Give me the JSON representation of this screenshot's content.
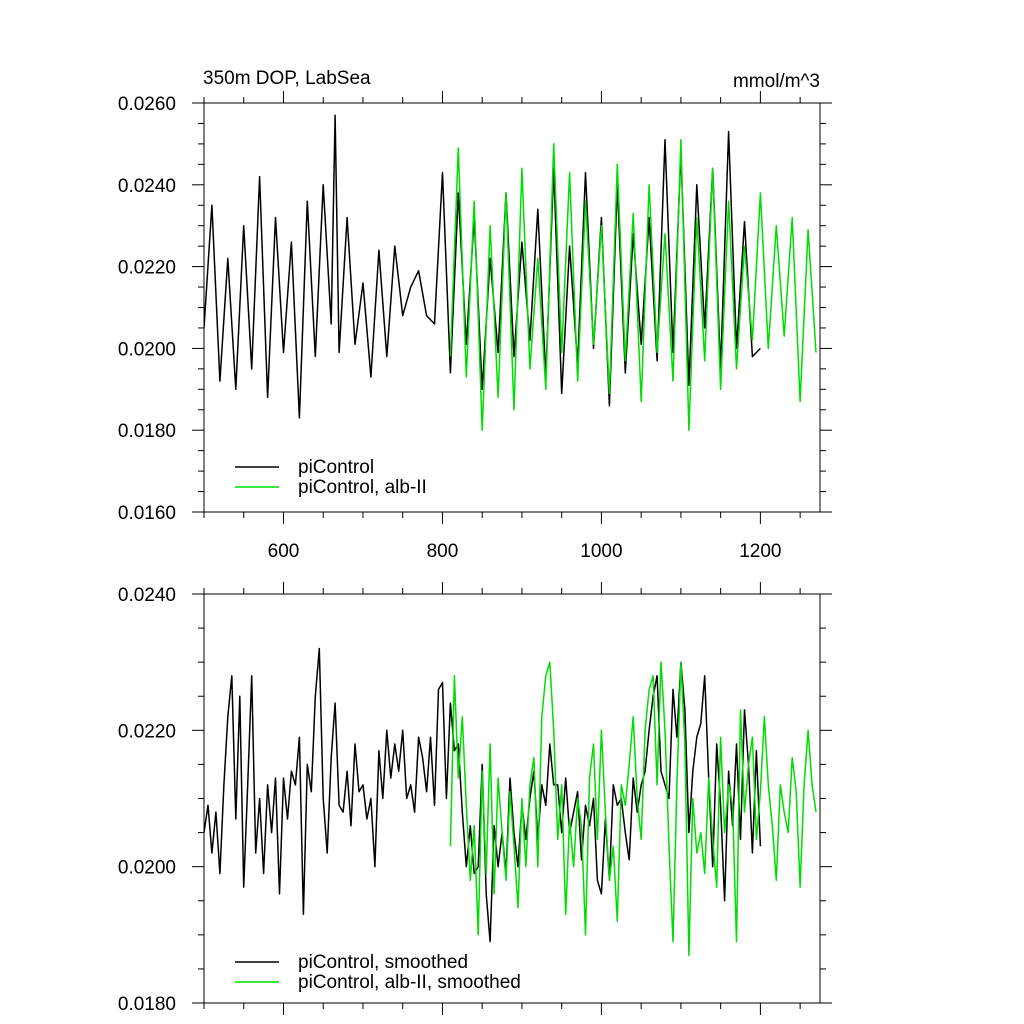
{
  "figure": {
    "title": "350m DOP, LabSea",
    "units": "mmol/m^3"
  },
  "chart_data": [
    {
      "type": "line",
      "title": "350m DOP, LabSea",
      "units": "mmol/m^3",
      "xlim": [
        500,
        1275
      ],
      "ylim": [
        0.016,
        0.026
      ],
      "xticks": [
        600,
        800,
        1000,
        1200
      ],
      "xtick_labels": [
        "600",
        "800",
        "1000",
        "1200"
      ],
      "yticks": [
        0.016,
        0.018,
        0.02,
        0.022,
        0.024,
        0.026
      ],
      "ytick_labels": [
        "0.0160",
        "0.0180",
        "0.0200",
        "0.0220",
        "0.0240",
        "0.0260"
      ],
      "legend_position": "bottom-left",
      "series": [
        {
          "name": "piControl",
          "color": "#000000",
          "x": [
            500,
            510,
            520,
            530,
            540,
            550,
            560,
            570,
            580,
            590,
            600,
            610,
            620,
            630,
            640,
            650,
            660,
            665,
            670,
            680,
            690,
            700,
            710,
            720,
            730,
            740,
            750,
            760,
            770,
            780,
            790,
            800,
            810,
            820,
            830,
            840,
            850,
            860,
            870,
            880,
            890,
            900,
            910,
            920,
            930,
            940,
            950,
            960,
            970,
            980,
            990,
            1000,
            1010,
            1020,
            1030,
            1040,
            1050,
            1060,
            1070,
            1080,
            1090,
            1100,
            1110,
            1120,
            1130,
            1140,
            1150,
            1160,
            1170,
            1180,
            1190,
            1200
          ],
          "y": [
            0.0205,
            0.0235,
            0.0192,
            0.0222,
            0.019,
            0.023,
            0.0195,
            0.0242,
            0.0188,
            0.0232,
            0.0199,
            0.0226,
            0.0183,
            0.0236,
            0.0198,
            0.024,
            0.0206,
            0.0257,
            0.0199,
            0.0232,
            0.0201,
            0.0216,
            0.0193,
            0.0224,
            0.0198,
            0.0225,
            0.0208,
            0.0215,
            0.0219,
            0.0208,
            0.0206,
            0.0243,
            0.0194,
            0.0238,
            0.0201,
            0.0232,
            0.019,
            0.0222,
            0.0199,
            0.0238,
            0.0198,
            0.0226,
            0.0202,
            0.0234,
            0.0193,
            0.0244,
            0.0189,
            0.0225,
            0.0196,
            0.0243,
            0.02,
            0.0232,
            0.0186,
            0.024,
            0.0194,
            0.0228,
            0.0201,
            0.0232,
            0.0197,
            0.0251,
            0.0199,
            0.0248,
            0.0191,
            0.024,
            0.0205,
            0.0244,
            0.0195,
            0.0253,
            0.02,
            0.0231,
            0.0198,
            0.02
          ]
        },
        {
          "name": "piControl, alb-II",
          "color": "#00dd00",
          "x": [
            810,
            820,
            830,
            840,
            850,
            860,
            870,
            880,
            890,
            900,
            910,
            920,
            930,
            940,
            950,
            960,
            970,
            980,
            990,
            1000,
            1010,
            1020,
            1030,
            1040,
            1050,
            1060,
            1070,
            1080,
            1090,
            1100,
            1110,
            1120,
            1130,
            1140,
            1150,
            1160,
            1170,
            1180,
            1190,
            1200,
            1210,
            1220,
            1230,
            1240,
            1250,
            1260,
            1270
          ],
          "y": [
            0.0198,
            0.0249,
            0.0193,
            0.0236,
            0.018,
            0.023,
            0.0188,
            0.0238,
            0.0185,
            0.0244,
            0.0195,
            0.0222,
            0.019,
            0.025,
            0.0199,
            0.0243,
            0.0192,
            0.0236,
            0.0201,
            0.023,
            0.0189,
            0.0245,
            0.0197,
            0.0233,
            0.0187,
            0.024,
            0.0199,
            0.0228,
            0.0192,
            0.0251,
            0.018,
            0.0232,
            0.0197,
            0.0244,
            0.019,
            0.0236,
            0.0195,
            0.0225,
            0.0202,
            0.0238,
            0.02,
            0.023,
            0.0203,
            0.0232,
            0.0187,
            0.0229,
            0.0199
          ]
        }
      ]
    },
    {
      "type": "line",
      "xlim": [
        500,
        1275
      ],
      "ylim": [
        0.018,
        0.024
      ],
      "xticks": [
        600,
        800,
        1000,
        1200
      ],
      "yticks": [
        0.018,
        0.02,
        0.022,
        0.024
      ],
      "ytick_labels": [
        "0.0180",
        "0.0200",
        "0.0220",
        "0.0240"
      ],
      "legend_position": "bottom-left",
      "series": [
        {
          "name": "piControl, smoothed",
          "color": "#000000",
          "x": [
            500,
            505,
            510,
            515,
            520,
            525,
            530,
            535,
            540,
            545,
            550,
            555,
            560,
            565,
            570,
            575,
            580,
            585,
            590,
            595,
            600,
            605,
            610,
            615,
            620,
            625,
            630,
            635,
            640,
            645,
            650,
            655,
            660,
            665,
            670,
            675,
            680,
            685,
            690,
            695,
            700,
            705,
            710,
            715,
            720,
            725,
            730,
            735,
            740,
            745,
            750,
            755,
            760,
            765,
            770,
            775,
            780,
            785,
            790,
            795,
            800,
            805,
            810,
            815,
            820,
            825,
            830,
            835,
            840,
            845,
            850,
            855,
            860,
            865,
            870,
            875,
            880,
            885,
            890,
            895,
            900,
            905,
            910,
            915,
            920,
            925,
            930,
            935,
            940,
            945,
            950,
            955,
            960,
            965,
            970,
            975,
            980,
            985,
            990,
            995,
            1000,
            1005,
            1010,
            1015,
            1020,
            1025,
            1030,
            1035,
            1040,
            1045,
            1050,
            1055,
            1060,
            1065,
            1070,
            1075,
            1080,
            1085,
            1090,
            1095,
            1100,
            1105,
            1110,
            1115,
            1120,
            1125,
            1130,
            1135,
            1140,
            1145,
            1150,
            1155,
            1160,
            1165,
            1170,
            1175,
            1180,
            1185,
            1190,
            1195,
            1200
          ],
          "y": [
            0.0205,
            0.0209,
            0.0202,
            0.0208,
            0.0199,
            0.0212,
            0.0222,
            0.0228,
            0.0207,
            0.0225,
            0.0197,
            0.0212,
            0.0228,
            0.0202,
            0.021,
            0.0199,
            0.0212,
            0.0205,
            0.0213,
            0.0196,
            0.0213,
            0.0207,
            0.0214,
            0.0212,
            0.0219,
            0.0193,
            0.0215,
            0.0211,
            0.0225,
            0.0232,
            0.021,
            0.0202,
            0.0216,
            0.0224,
            0.0209,
            0.0208,
            0.0214,
            0.0206,
            0.0218,
            0.0211,
            0.0212,
            0.0207,
            0.021,
            0.02,
            0.0217,
            0.021,
            0.022,
            0.0213,
            0.0218,
            0.0214,
            0.022,
            0.021,
            0.0212,
            0.0208,
            0.0219,
            0.0216,
            0.0211,
            0.0219,
            0.0209,
            0.0226,
            0.0227,
            0.021,
            0.0224,
            0.0217,
            0.0218,
            0.0208,
            0.02,
            0.0206,
            0.0199,
            0.02,
            0.0215,
            0.0196,
            0.0189,
            0.0206,
            0.02,
            0.0205,
            0.0199,
            0.0213,
            0.0205,
            0.02,
            0.0209,
            0.0204,
            0.021,
            0.0214,
            0.0204,
            0.0212,
            0.0209,
            0.0218,
            0.0212,
            0.0212,
            0.0205,
            0.0213,
            0.0205,
            0.0208,
            0.0211,
            0.0201,
            0.0209,
            0.0206,
            0.021,
            0.0198,
            0.0196,
            0.0207,
            0.0198,
            0.0212,
            0.0209,
            0.021,
            0.0205,
            0.0201,
            0.0213,
            0.0208,
            0.0212,
            0.0214,
            0.022,
            0.0225,
            0.0228,
            0.0214,
            0.0212,
            0.021,
            0.0226,
            0.0219,
            0.023,
            0.0223,
            0.0205,
            0.0214,
            0.0219,
            0.0221,
            0.0228,
            0.0213,
            0.02,
            0.0218,
            0.0209,
            0.0195,
            0.0214,
            0.0206,
            0.0218,
            0.0204,
            0.0223,
            0.0215,
            0.0202,
            0.0217,
            0.0203
          ]
        },
        {
          "name": "piControl, alb-II, smoothed",
          "color": "#00dd00",
          "x": [
            810,
            815,
            820,
            825,
            830,
            835,
            840,
            845,
            850,
            855,
            860,
            865,
            870,
            875,
            880,
            885,
            890,
            895,
            900,
            905,
            910,
            915,
            920,
            925,
            930,
            935,
            940,
            945,
            950,
            955,
            960,
            965,
            970,
            975,
            980,
            985,
            990,
            995,
            1000,
            1005,
            1010,
            1015,
            1020,
            1025,
            1030,
            1035,
            1040,
            1045,
            1050,
            1055,
            1060,
            1065,
            1070,
            1075,
            1080,
            1085,
            1090,
            1095,
            1100,
            1105,
            1110,
            1115,
            1120,
            1125,
            1130,
            1135,
            1140,
            1145,
            1150,
            1155,
            1160,
            1165,
            1170,
            1175,
            1180,
            1185,
            1190,
            1195,
            1200,
            1205,
            1210,
            1215,
            1220,
            1225,
            1230,
            1235,
            1240,
            1245,
            1250,
            1255,
            1260,
            1265,
            1270
          ],
          "y": [
            0.0203,
            0.0228,
            0.0213,
            0.0222,
            0.0209,
            0.0198,
            0.0206,
            0.019,
            0.0214,
            0.0199,
            0.0218,
            0.0196,
            0.0213,
            0.0205,
            0.0198,
            0.0211,
            0.0203,
            0.0194,
            0.021,
            0.02,
            0.0212,
            0.0216,
            0.02,
            0.0222,
            0.0228,
            0.023,
            0.022,
            0.0204,
            0.0212,
            0.0193,
            0.0207,
            0.02,
            0.021,
            0.0206,
            0.019,
            0.0213,
            0.0218,
            0.0204,
            0.022,
            0.0208,
            0.0198,
            0.0203,
            0.0192,
            0.0212,
            0.0209,
            0.0215,
            0.0222,
            0.021,
            0.0204,
            0.022,
            0.0226,
            0.0228,
            0.0212,
            0.023,
            0.022,
            0.0203,
            0.0189,
            0.0212,
            0.023,
            0.0218,
            0.0187,
            0.021,
            0.0202,
            0.0205,
            0.0199,
            0.0213,
            0.0204,
            0.0197,
            0.0219,
            0.0205,
            0.0212,
            0.0209,
            0.0189,
            0.0223,
            0.0208,
            0.0215,
            0.0219,
            0.0204,
            0.0211,
            0.0222,
            0.0212,
            0.0206,
            0.0198,
            0.0212,
            0.0208,
            0.0205,
            0.0216,
            0.0211,
            0.0197,
            0.0212,
            0.022,
            0.0212,
            0.0208
          ]
        }
      ]
    }
  ]
}
